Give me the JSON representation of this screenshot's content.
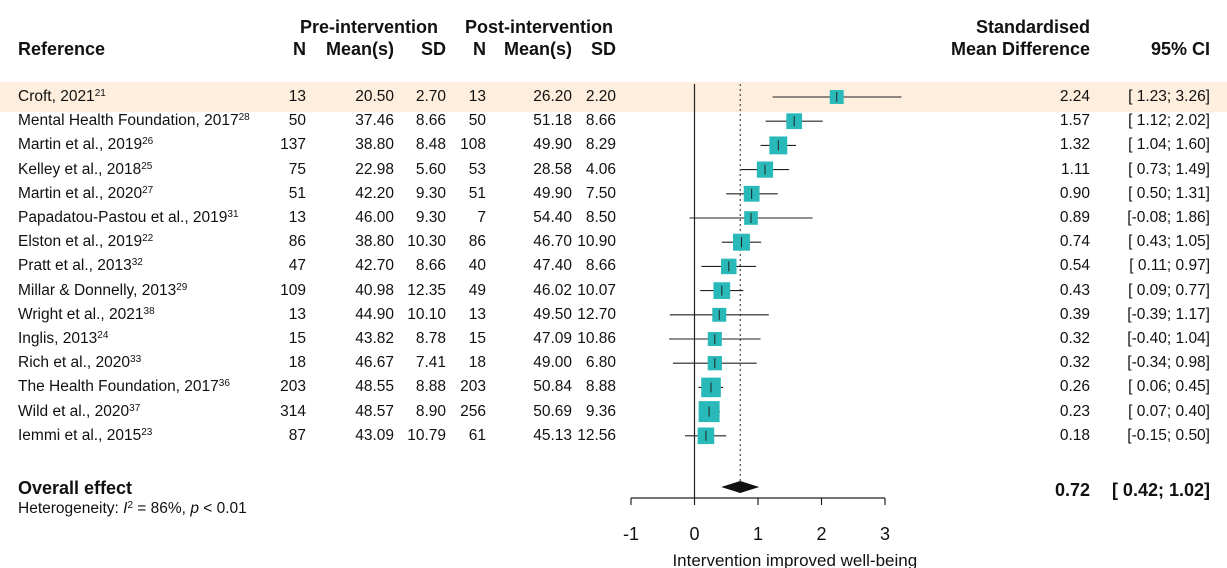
{
  "header": {
    "group_pre": "Pre-intervention",
    "group_post": "Post-intervention",
    "col_reference": "Reference",
    "col_n": "N",
    "col_mean": "Mean(s)",
    "col_sd": "SD",
    "col_smd_line1": "Standardised",
    "col_smd_line2": "Mean Difference",
    "col_ci": "95% CI"
  },
  "overall": {
    "label": "Overall effect",
    "heterogeneity_prefix": "Heterogeneity: ",
    "i2_symbol": "I",
    "i2_sup": "2",
    "i2_value": " = 86%, ",
    "p_symbol": "p",
    "p_value": " < 0.01",
    "smd": "0.72",
    "ci": "[ 0.42; 1.02]"
  },
  "chart_data": {
    "type": "forest",
    "xlabel": "Intervention improved well-being",
    "xlim": [
      -1,
      3
    ],
    "xticks": [
      "-1",
      "0",
      "1",
      "2",
      "3"
    ],
    "null_line": 0,
    "overall_line": 0.72,
    "marker_color": "#2ab9b9",
    "highlight_color": "#fdeedd",
    "highlight_row": 0,
    "overall": {
      "smd": 0.72,
      "lower": 0.42,
      "upper": 1.02
    },
    "studies": [
      {
        "ref": "Croft, 2021",
        "sup": "21",
        "pre_n": "13",
        "pre_mean": "20.50",
        "pre_sd": "2.70",
        "post_n": "13",
        "post_mean": "26.20",
        "post_sd": "2.20",
        "smd": 2.24,
        "lower": 1.23,
        "upper": 3.26,
        "smd_text": "2.24",
        "ci_text": "[ 1.23; 3.26]"
      },
      {
        "ref": "Mental Health Foundation, 2017",
        "sup": "28",
        "pre_n": "50",
        "pre_mean": "37.46",
        "pre_sd": "8.66",
        "post_n": "50",
        "post_mean": "51.18",
        "post_sd": "8.66",
        "smd": 1.57,
        "lower": 1.12,
        "upper": 2.02,
        "smd_text": "1.57",
        "ci_text": "[ 1.12; 2.02]"
      },
      {
        "ref": "Martin et al., 2019",
        "sup": "26",
        "pre_n": "137",
        "pre_mean": "38.80",
        "pre_sd": "8.48",
        "post_n": "108",
        "post_mean": "49.90",
        "post_sd": "8.29",
        "smd": 1.32,
        "lower": 1.04,
        "upper": 1.6,
        "smd_text": "1.32",
        "ci_text": "[ 1.04; 1.60]"
      },
      {
        "ref": "Kelley et al., 2018",
        "sup": "25",
        "pre_n": "75",
        "pre_mean": "22.98",
        "pre_sd": "5.60",
        "post_n": "53",
        "post_mean": "28.58",
        "post_sd": "4.06",
        "smd": 1.11,
        "lower": 0.73,
        "upper": 1.49,
        "smd_text": "1.11",
        "ci_text": "[ 0.73; 1.49]"
      },
      {
        "ref": "Martin et al., 2020",
        "sup": "27",
        "pre_n": "51",
        "pre_mean": "42.20",
        "pre_sd": "9.30",
        "post_n": "51",
        "post_mean": "49.90",
        "post_sd": "7.50",
        "smd": 0.9,
        "lower": 0.5,
        "upper": 1.31,
        "smd_text": "0.90",
        "ci_text": "[ 0.50; 1.31]"
      },
      {
        "ref": "Papadatou-Pastou et al., 2019",
        "sup": "31",
        "pre_n": "13",
        "pre_mean": "46.00",
        "pre_sd": "9.30",
        "post_n": "7",
        "post_mean": "54.40",
        "post_sd": "8.50",
        "smd": 0.89,
        "lower": -0.08,
        "upper": 1.86,
        "smd_text": "0.89",
        "ci_text": "[-0.08; 1.86]"
      },
      {
        "ref": "Elston et al., 2019",
        "sup": "22",
        "pre_n": "86",
        "pre_mean": "38.80",
        "pre_sd": "10.30",
        "post_n": "86",
        "post_mean": "46.70",
        "post_sd": "10.90",
        "smd": 0.74,
        "lower": 0.43,
        "upper": 1.05,
        "smd_text": "0.74",
        "ci_text": "[ 0.43; 1.05]"
      },
      {
        "ref": "Pratt et al., 2013",
        "sup": "32",
        "pre_n": "47",
        "pre_mean": "42.70",
        "pre_sd": "8.66",
        "post_n": "40",
        "post_mean": "47.40",
        "post_sd": "8.66",
        "smd": 0.54,
        "lower": 0.11,
        "upper": 0.97,
        "smd_text": "0.54",
        "ci_text": "[ 0.11; 0.97]"
      },
      {
        "ref": "Millar & Donnelly, 2013",
        "sup": "29",
        "pre_n": "109",
        "pre_mean": "40.98",
        "pre_sd": "12.35",
        "post_n": "49",
        "post_mean": "46.02",
        "post_sd": "10.07",
        "smd": 0.43,
        "lower": 0.09,
        "upper": 0.77,
        "smd_text": "0.43",
        "ci_text": "[ 0.09; 0.77]"
      },
      {
        "ref": "Wright et al., 2021",
        "sup": "38",
        "pre_n": "13",
        "pre_mean": "44.90",
        "pre_sd": "10.10",
        "post_n": "13",
        "post_mean": "49.50",
        "post_sd": "12.70",
        "smd": 0.39,
        "lower": -0.39,
        "upper": 1.17,
        "smd_text": "0.39",
        "ci_text": "[-0.39; 1.17]"
      },
      {
        "ref": "Inglis, 2013",
        "sup": "24",
        "pre_n": "15",
        "pre_mean": "43.82",
        "pre_sd": "8.78",
        "post_n": "15",
        "post_mean": "47.09",
        "post_sd": "10.86",
        "smd": 0.32,
        "lower": -0.4,
        "upper": 1.04,
        "smd_text": "0.32",
        "ci_text": "[-0.40; 1.04]"
      },
      {
        "ref": "Rich et al., 2020",
        "sup": "33",
        "pre_n": "18",
        "pre_mean": "46.67",
        "pre_sd": "7.41",
        "post_n": "18",
        "post_mean": "49.00",
        "post_sd": "6.80",
        "smd": 0.32,
        "lower": -0.34,
        "upper": 0.98,
        "smd_text": "0.32",
        "ci_text": "[-0.34; 0.98]"
      },
      {
        "ref": "The Health Foundation, 2017",
        "sup": "36",
        "pre_n": "203",
        "pre_mean": "48.55",
        "pre_sd": "8.88",
        "post_n": "203",
        "post_mean": "50.84",
        "post_sd": "8.88",
        "smd": 0.26,
        "lower": 0.06,
        "upper": 0.45,
        "smd_text": "0.26",
        "ci_text": "[ 0.06; 0.45]"
      },
      {
        "ref": "Wild et al., 2020",
        "sup": "37",
        "pre_n": "314",
        "pre_mean": "48.57",
        "pre_sd": "8.90",
        "post_n": "256",
        "post_mean": "50.69",
        "post_sd": "9.36",
        "smd": 0.23,
        "lower": 0.07,
        "upper": 0.4,
        "smd_text": "0.23",
        "ci_text": "[ 0.07; 0.40]"
      },
      {
        "ref": "Iemmi et al., 2015",
        "sup": "23",
        "pre_n": "87",
        "pre_mean": "43.09",
        "pre_sd": "10.79",
        "post_n": "61",
        "post_mean": "45.13",
        "post_sd": "12.56",
        "smd": 0.18,
        "lower": -0.15,
        "upper": 0.5,
        "smd_text": "0.18",
        "ci_text": "[-0.15; 0.50]"
      }
    ]
  }
}
